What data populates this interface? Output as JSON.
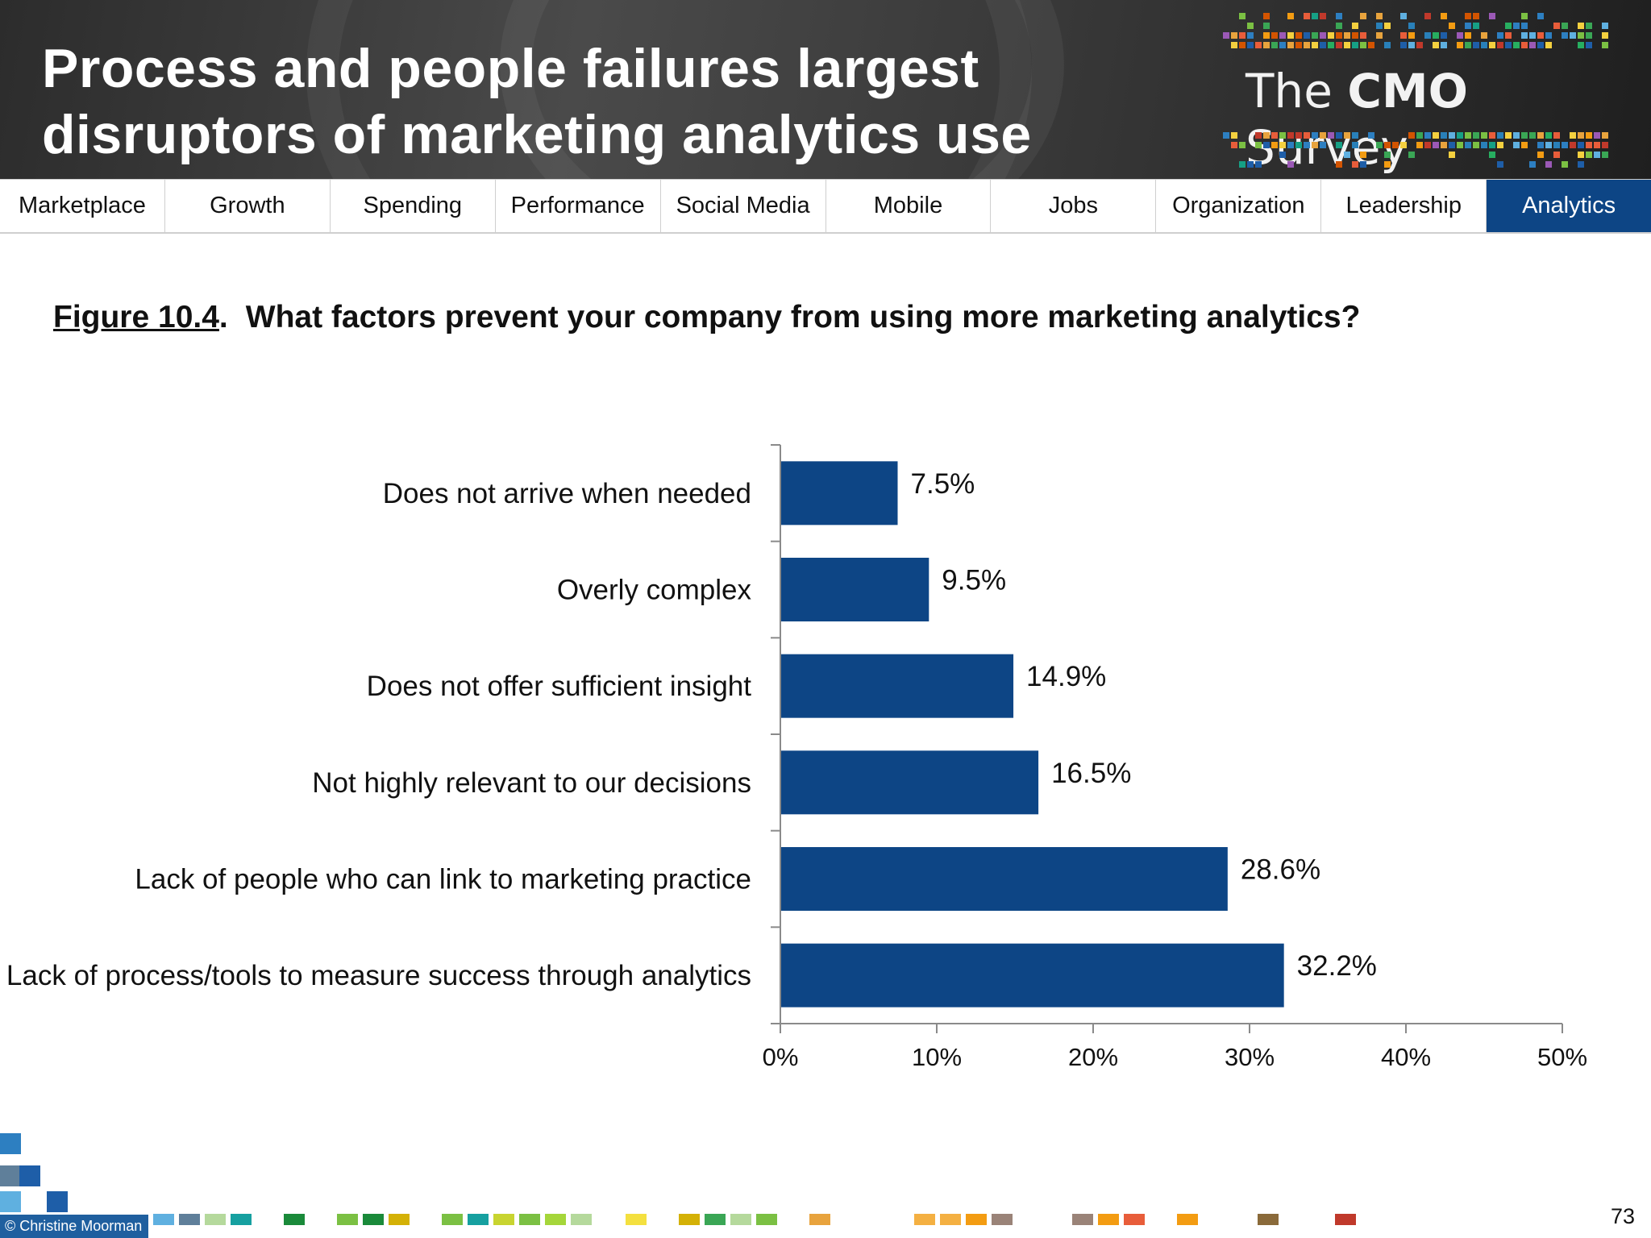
{
  "header": {
    "title_line1": "Process and people failures largest",
    "title_line2": "disruptors of marketing analytics use",
    "brand_the": "The",
    "brand_cmo": "CMO",
    "brand_survey": "Survey"
  },
  "nav": {
    "tabs": [
      {
        "label": "Marketplace",
        "active": false
      },
      {
        "label": "Growth",
        "active": false
      },
      {
        "label": "Spending",
        "active": false
      },
      {
        "label": "Performance",
        "active": false
      },
      {
        "label": "Social Media",
        "active": false
      },
      {
        "label": "Mobile",
        "active": false
      },
      {
        "label": "Jobs",
        "active": false
      },
      {
        "label": "Organization",
        "active": false
      },
      {
        "label": "Leadership",
        "active": false
      },
      {
        "label": "Analytics",
        "active": true
      }
    ],
    "active_color": "#0d4585"
  },
  "figure": {
    "number": "Figure 10.4",
    "punct": ".",
    "question": "What factors prevent your company from using more marketing analytics?"
  },
  "chart_data": {
    "type": "bar",
    "orientation": "horizontal",
    "categories": [
      "Does not arrive when needed",
      "Overly complex",
      "Does not offer sufficient insight",
      "Not highly relevant to our decisions",
      "Lack of people who can link to marketing practice",
      "Lack of process/tools to measure success through analytics"
    ],
    "values": [
      7.5,
      9.5,
      14.9,
      16.5,
      28.6,
      32.2
    ],
    "value_labels": [
      "7.5%",
      "9.5%",
      "14.9%",
      "16.5%",
      "28.6%",
      "32.2%"
    ],
    "xlim": [
      0,
      50
    ],
    "x_ticks": [
      0,
      10,
      20,
      30,
      40,
      50
    ],
    "x_tick_labels": [
      "0%",
      "10%",
      "20%",
      "30%",
      "40%",
      "50%"
    ],
    "bar_color": "#0d4585",
    "grid": false,
    "title": "",
    "xlabel": "",
    "ylabel": ""
  },
  "footer": {
    "credit": "© Christine Moorman",
    "page_number": "73"
  }
}
